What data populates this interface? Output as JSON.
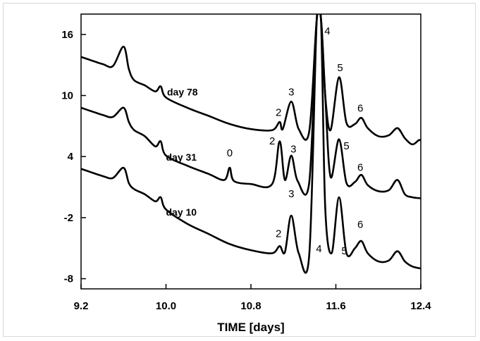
{
  "chart_data": {
    "type": "line",
    "title": "",
    "xlabel": "TIME [days]",
    "ylabel": "",
    "xlim": [
      9.2,
      12.4
    ],
    "ylim": [
      -9,
      18
    ],
    "grid": false,
    "x_ticks": [
      9.2,
      10.0,
      10.8,
      11.6,
      12.4
    ],
    "x_tick_labels": [
      "9.2",
      "10.0",
      "10.8",
      "11.6",
      "12.4"
    ],
    "y_ticks": [
      16,
      10,
      4,
      -2,
      -8
    ],
    "y_tick_labels": [
      "16",
      "10",
      "4",
      "-2",
      "-8"
    ],
    "series": [
      {
        "name": "day 78",
        "label_at": [
          10.01,
          10.0
        ],
        "points": [
          [
            9.2,
            13.8
          ],
          [
            9.4,
            13.1
          ],
          [
            9.5,
            12.9
          ],
          [
            9.6,
            14.8
          ],
          [
            9.65,
            12.6
          ],
          [
            9.7,
            11.5
          ],
          [
            9.8,
            11.0
          ],
          [
            9.9,
            10.4
          ],
          [
            9.95,
            10.9
          ],
          [
            10.0,
            9.8
          ],
          [
            10.2,
            8.8
          ],
          [
            10.4,
            8.0
          ],
          [
            10.6,
            7.2
          ],
          [
            10.8,
            6.7
          ],
          [
            11.0,
            6.6
          ],
          [
            11.07,
            7.4
          ],
          [
            11.1,
            6.7
          ],
          [
            11.18,
            9.4
          ],
          [
            11.25,
            6.7
          ],
          [
            11.35,
            6.5
          ],
          [
            11.42,
            17.5
          ],
          [
            11.46,
            17.5
          ],
          [
            11.5,
            10.0
          ],
          [
            11.55,
            6.6
          ],
          [
            11.63,
            11.8
          ],
          [
            11.7,
            7.3
          ],
          [
            11.78,
            7.2
          ],
          [
            11.84,
            7.8
          ],
          [
            11.9,
            6.8
          ],
          [
            12.0,
            6.0
          ],
          [
            12.1,
            6.1
          ],
          [
            12.18,
            6.8
          ],
          [
            12.25,
            5.8
          ],
          [
            12.32,
            5.2
          ],
          [
            12.38,
            5.6
          ],
          [
            12.4,
            5.6
          ]
        ],
        "peak_labels": [
          {
            "text": "2",
            "at": [
              11.06,
              8.0
            ]
          },
          {
            "text": "3",
            "at": [
              11.18,
              10.0
            ]
          },
          {
            "text": "4",
            "at": [
              11.52,
              16.0
            ]
          },
          {
            "text": "5",
            "at": [
              11.64,
              12.4
            ]
          },
          {
            "text": "6",
            "at": [
              11.83,
              8.4
            ]
          }
        ]
      },
      {
        "name": "day 31",
        "label_at": [
          10.0,
          3.6
        ],
        "points": [
          [
            9.2,
            8.8
          ],
          [
            9.4,
            8.1
          ],
          [
            9.5,
            7.9
          ],
          [
            9.6,
            8.8
          ],
          [
            9.65,
            7.4
          ],
          [
            9.7,
            6.6
          ],
          [
            9.8,
            6.0
          ],
          [
            9.9,
            5.0
          ],
          [
            9.95,
            5.5
          ],
          [
            10.0,
            4.1
          ],
          [
            10.2,
            3.1
          ],
          [
            10.4,
            2.3
          ],
          [
            10.55,
            1.7
          ],
          [
            10.6,
            2.9
          ],
          [
            10.64,
            1.6
          ],
          [
            10.8,
            1.3
          ],
          [
            11.0,
            1.3
          ],
          [
            11.07,
            5.5
          ],
          [
            11.12,
            1.7
          ],
          [
            11.18,
            4.1
          ],
          [
            11.24,
            1.6
          ],
          [
            11.35,
            1.5
          ],
          [
            11.42,
            17.5
          ],
          [
            11.46,
            17.5
          ],
          [
            11.5,
            10.0
          ],
          [
            11.55,
            2.0
          ],
          [
            11.63,
            5.7
          ],
          [
            11.7,
            1.4
          ],
          [
            11.78,
            1.5
          ],
          [
            11.84,
            2.2
          ],
          [
            11.9,
            1.2
          ],
          [
            12.0,
            0.6
          ],
          [
            12.1,
            0.7
          ],
          [
            12.18,
            1.7
          ],
          [
            12.25,
            0.3
          ],
          [
            12.32,
            0.0
          ],
          [
            12.4,
            -0.1
          ]
        ],
        "peak_labels": [
          {
            "text": "0",
            "at": [
              10.6,
              4.0
            ]
          },
          {
            "text": "2",
            "at": [
              11.0,
              5.2
            ]
          },
          {
            "text": "3",
            "at": [
              11.2,
              4.4
            ]
          },
          {
            "text": "5",
            "at": [
              11.7,
              4.7
            ]
          },
          {
            "text": "6",
            "at": [
              11.83,
              2.6
            ]
          }
        ]
      },
      {
        "name": "day 10",
        "label_at": [
          10.0,
          -1.8
        ],
        "points": [
          [
            9.2,
            2.8
          ],
          [
            9.4,
            2.1
          ],
          [
            9.5,
            1.9
          ],
          [
            9.6,
            2.9
          ],
          [
            9.65,
            1.4
          ],
          [
            9.7,
            0.8
          ],
          [
            9.8,
            0.3
          ],
          [
            9.9,
            -0.4
          ],
          [
            9.95,
            0.0
          ],
          [
            10.0,
            -1.2
          ],
          [
            10.2,
            -2.6
          ],
          [
            10.4,
            -3.6
          ],
          [
            10.6,
            -4.6
          ],
          [
            10.8,
            -5.2
          ],
          [
            11.0,
            -5.5
          ],
          [
            11.07,
            -4.8
          ],
          [
            11.12,
            -5.4
          ],
          [
            11.18,
            -1.8
          ],
          [
            11.25,
            -5.5
          ],
          [
            11.35,
            -5.6
          ],
          [
            11.42,
            17.5
          ],
          [
            11.46,
            17.5
          ],
          [
            11.5,
            -1.0
          ],
          [
            11.56,
            -5.5
          ],
          [
            11.63,
            0.0
          ],
          [
            11.7,
            -5.5
          ],
          [
            11.78,
            -5.0
          ],
          [
            11.84,
            -4.3
          ],
          [
            11.9,
            -5.5
          ],
          [
            12.0,
            -6.3
          ],
          [
            12.1,
            -6.2
          ],
          [
            12.18,
            -5.3
          ],
          [
            12.25,
            -6.3
          ],
          [
            12.32,
            -6.8
          ],
          [
            12.4,
            -7.0
          ]
        ],
        "peak_labels": [
          {
            "text": "2",
            "at": [
              11.06,
              -3.9
            ]
          },
          {
            "text": "3",
            "at": [
              11.18,
              0.0
            ]
          },
          {
            "text": "4",
            "at": [
              11.44,
              -5.4
            ]
          },
          {
            "text": "5",
            "at": [
              11.68,
              -5.6
            ]
          },
          {
            "text": "6",
            "at": [
              11.83,
              -3.0
            ]
          }
        ]
      }
    ]
  }
}
